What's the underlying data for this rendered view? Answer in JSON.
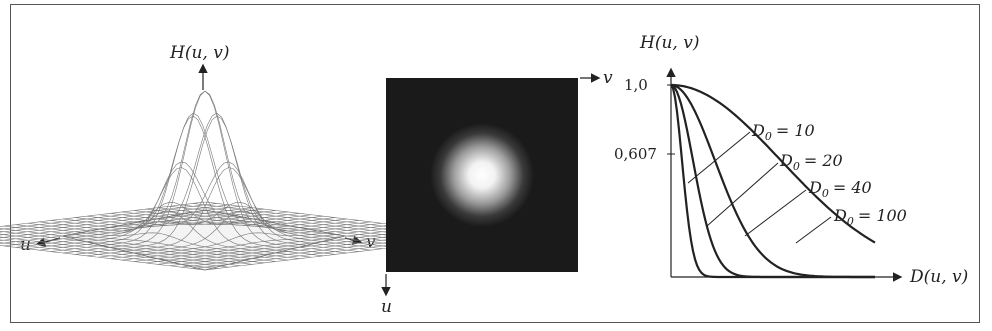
{
  "panel_3d": {
    "vertical_axis_label": "H(u, v)",
    "u_axis_label": "u",
    "v_axis_label": "v"
  },
  "panel_image": {
    "v_axis_label": "v",
    "u_axis_label": "u"
  },
  "panel_plot": {
    "y_axis_label": "H(u, v)",
    "x_axis_label": "D(u, v)",
    "ytick_top": "1,0",
    "ytick_mid": "0,607",
    "curves": [
      {
        "label_base": "D",
        "label_sub": "0",
        "label_value": "= 10",
        "d0": 10
      },
      {
        "label_base": "D",
        "label_sub": "0",
        "label_value": "= 20",
        "d0": 20
      },
      {
        "label_base": "D",
        "label_sub": "0",
        "label_value": "= 40",
        "d0": 40
      },
      {
        "label_base": "D",
        "label_sub": "0",
        "label_value": "= 100",
        "d0": 100
      }
    ]
  },
  "colors": {
    "line": "#222222",
    "image_bg": "#1a1a1a",
    "mesh": "#777777"
  }
}
